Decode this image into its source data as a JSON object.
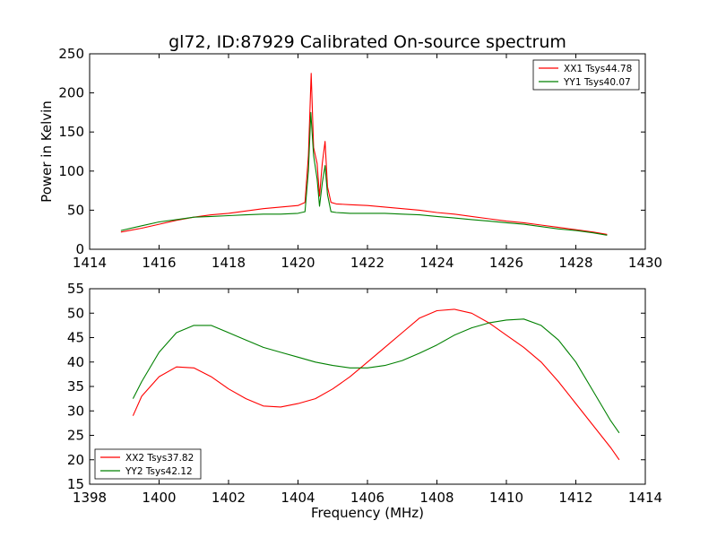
{
  "figure": {
    "title": "gl72, ID:87929 Calibrated On-source spectrum"
  },
  "chart_data": [
    {
      "type": "line",
      "title": "gl72, ID:87929 Calibrated On-source spectrum",
      "xlabel": "",
      "ylabel": "Power in Kelvin",
      "xlim": [
        1414,
        1430
      ],
      "ylim": [
        0,
        250
      ],
      "xticks": [
        1414,
        1416,
        1418,
        1420,
        1422,
        1424,
        1426,
        1428,
        1430
      ],
      "yticks": [
        0,
        50,
        100,
        150,
        200,
        250
      ],
      "legend_position": "top-right",
      "series": [
        {
          "name": "XX1 Tsys44.78",
          "color": "#ff0000",
          "x": [
            1414.9,
            1415.5,
            1416.0,
            1416.5,
            1417.0,
            1417.5,
            1418.0,
            1418.5,
            1419.0,
            1419.5,
            1420.0,
            1420.2,
            1420.3,
            1420.38,
            1420.45,
            1420.55,
            1420.62,
            1420.7,
            1420.78,
            1420.85,
            1420.95,
            1421.1,
            1421.5,
            1422.0,
            1422.5,
            1423.0,
            1423.5,
            1424.0,
            1424.5,
            1425.0,
            1425.5,
            1426.0,
            1426.5,
            1427.0,
            1427.5,
            1428.0,
            1428.5,
            1428.9
          ],
          "values": [
            22,
            27,
            32,
            37,
            41,
            44,
            46,
            49,
            52,
            54,
            56,
            60,
            120,
            225,
            130,
            110,
            68,
            110,
            138,
            80,
            60,
            58,
            57,
            56,
            54,
            52,
            50,
            47,
            45,
            42,
            39,
            36,
            34,
            31,
            28,
            25,
            22,
            19
          ]
        },
        {
          "name": "YY1 Tsys40.07",
          "color": "#008000",
          "x": [
            1414.9,
            1415.5,
            1416.0,
            1416.5,
            1417.0,
            1417.5,
            1418.0,
            1418.5,
            1419.0,
            1419.5,
            1420.0,
            1420.2,
            1420.3,
            1420.37,
            1420.45,
            1420.55,
            1420.62,
            1420.7,
            1420.78,
            1420.85,
            1420.95,
            1421.1,
            1421.5,
            1422.0,
            1422.5,
            1423.0,
            1423.5,
            1424.0,
            1424.5,
            1425.0,
            1425.5,
            1426.0,
            1426.5,
            1427.0,
            1427.5,
            1428.0,
            1428.5,
            1428.9
          ],
          "values": [
            24,
            30,
            35,
            38,
            41,
            42,
            43,
            44,
            45,
            45,
            46,
            48,
            100,
            175,
            120,
            90,
            55,
            85,
            107,
            70,
            48,
            47,
            46,
            46,
            46,
            45,
            44,
            42,
            40,
            38,
            36,
            34,
            32,
            29,
            26,
            24,
            21,
            18
          ]
        }
      ]
    },
    {
      "type": "line",
      "title": "",
      "xlabel": "Frequency (MHz)",
      "ylabel": "",
      "xlim": [
        1398,
        1414
      ],
      "ylim": [
        15,
        55
      ],
      "xticks": [
        1398,
        1400,
        1402,
        1404,
        1406,
        1408,
        1410,
        1412,
        1414
      ],
      "yticks": [
        15,
        20,
        25,
        30,
        35,
        40,
        45,
        50,
        55
      ],
      "legend_position": "bottom-left",
      "series": [
        {
          "name": "XX2 Tsys37.82",
          "color": "#ff0000",
          "x": [
            1399.25,
            1399.5,
            1400.0,
            1400.5,
            1401.0,
            1401.5,
            1402.0,
            1402.5,
            1403.0,
            1403.5,
            1404.0,
            1404.5,
            1405.0,
            1405.5,
            1406.0,
            1406.5,
            1407.0,
            1407.5,
            1408.0,
            1408.5,
            1409.0,
            1409.5,
            1410.0,
            1410.5,
            1411.0,
            1411.5,
            1412.0,
            1412.5,
            1413.0,
            1413.25
          ],
          "values": [
            29,
            33,
            37,
            39,
            38.8,
            37,
            34.5,
            32.5,
            31,
            30.8,
            31.5,
            32.5,
            34.5,
            37,
            40,
            43,
            46,
            49,
            50.5,
            50.8,
            50,
            48,
            45.5,
            43,
            40,
            36,
            31.5,
            27,
            22.5,
            20
          ]
        },
        {
          "name": "YY2 Tsys42.12",
          "color": "#008000",
          "x": [
            1399.25,
            1399.5,
            1400.0,
            1400.5,
            1401.0,
            1401.5,
            1402.0,
            1402.5,
            1403.0,
            1403.5,
            1404.0,
            1404.5,
            1405.0,
            1405.5,
            1406.0,
            1406.5,
            1407.0,
            1407.5,
            1408.0,
            1408.5,
            1409.0,
            1409.5,
            1410.0,
            1410.5,
            1411.0,
            1411.5,
            1412.0,
            1412.5,
            1413.0,
            1413.25
          ],
          "values": [
            32.5,
            36,
            42,
            46,
            47.5,
            47.5,
            46,
            44.5,
            43,
            42,
            41,
            40,
            39.3,
            38.8,
            38.8,
            39.3,
            40.3,
            41.8,
            43.5,
            45.5,
            47,
            48,
            48.6,
            48.8,
            47.5,
            44.5,
            40,
            34,
            28,
            25.5
          ]
        }
      ]
    }
  ]
}
